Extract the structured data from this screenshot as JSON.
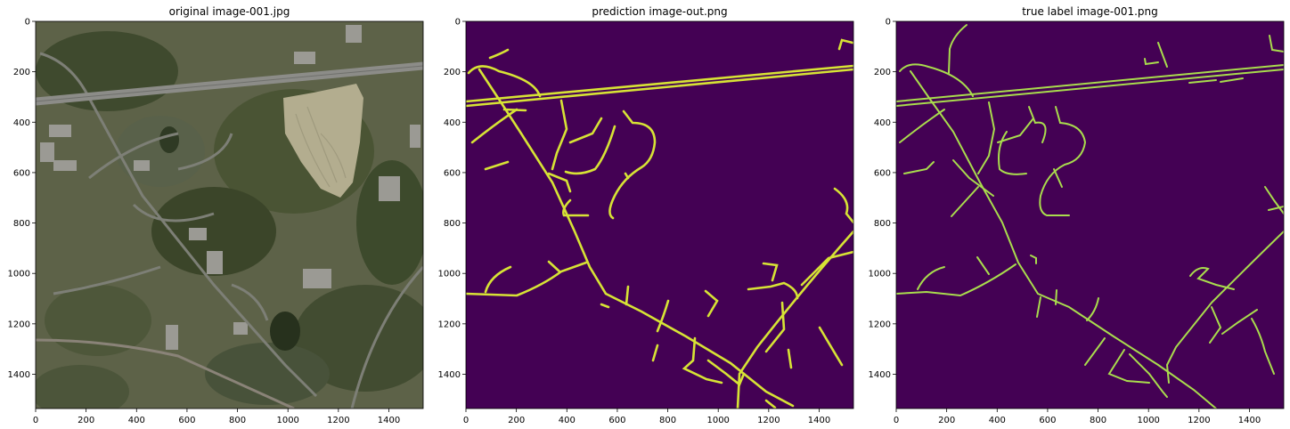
{
  "figure": {
    "panels": [
      {
        "title": "original image-001.jpg",
        "kind": "aerial-photo",
        "x_ticks": [
          "0",
          "200",
          "400",
          "600",
          "800",
          "1000",
          "1200",
          "1400"
        ],
        "y_ticks": [
          "0",
          "200",
          "400",
          "600",
          "800",
          "1000",
          "1200",
          "1400"
        ]
      },
      {
        "title": "prediction image-out.png",
        "kind": "road-mask-prediction",
        "x_ticks": [
          "0",
          "200",
          "400",
          "600",
          "800",
          "1000",
          "1200",
          "1400"
        ],
        "y_ticks": [
          "0",
          "200",
          "400",
          "600",
          "800",
          "1000",
          "1200",
          "1400"
        ]
      },
      {
        "title": "true label image-001.png",
        "kind": "road-mask-label",
        "x_ticks": [
          "0",
          "200",
          "400",
          "600",
          "800",
          "1000",
          "1200",
          "1400"
        ],
        "y_ticks": [
          "0",
          "200",
          "400",
          "600",
          "800",
          "1000",
          "1200",
          "1400"
        ]
      }
    ]
  },
  "colors": {
    "mask_background": "#440154",
    "prediction_road": "#d7e335",
    "label_road": "#a9dc4d",
    "photo_base": "#5d6248",
    "photo_forest": "#3d4a2c",
    "photo_field": "#b3ad8f",
    "photo_highway": "#8c8c88"
  }
}
